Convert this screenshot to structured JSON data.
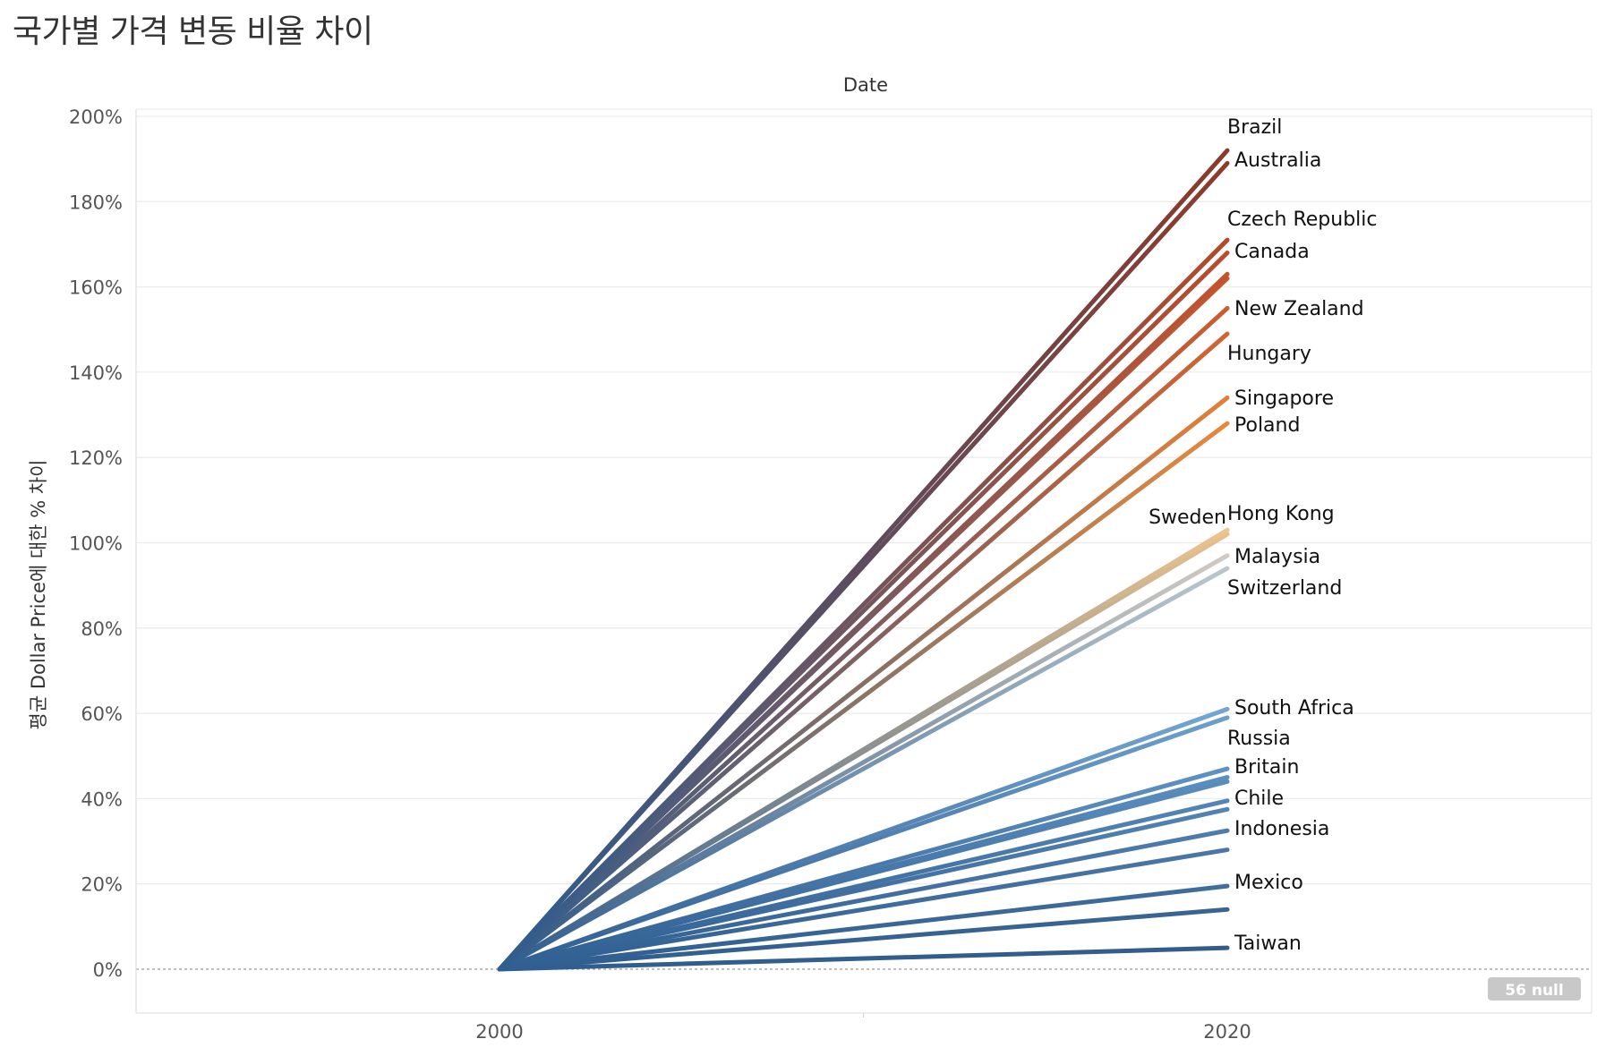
{
  "title": "국가별 가격 변동 비율 차이",
  "chart_data": {
    "type": "line",
    "column_header": "Date",
    "ylabel": "평균 Dollar Price에 대한 % 차이",
    "ylim": [
      -10,
      200
    ],
    "y_ticks": [
      "200%",
      "180%",
      "160%",
      "140%",
      "120%",
      "100%",
      "80%",
      "60%",
      "40%",
      "20%",
      "0%"
    ],
    "y_tick_values": [
      200,
      180,
      160,
      140,
      120,
      100,
      80,
      60,
      40,
      20,
      0
    ],
    "x_ticks": [
      "2000",
      "2020"
    ],
    "null_badge": "56 null",
    "grid": true,
    "series": [
      {
        "name": "Brazil",
        "x": [
          2000,
          2020
        ],
        "y": [
          0,
          192
        ],
        "color": "#8b3a2a"
      },
      {
        "name": "Australia",
        "x": [
          2000,
          2020
        ],
        "y": [
          0,
          189
        ],
        "color": "#8e3b2b"
      },
      {
        "name": "Czech Republic",
        "x": [
          2000,
          2020
        ],
        "y": [
          0,
          171
        ],
        "color": "#b24a2a"
      },
      {
        "name": "Canada",
        "x": [
          2000,
          2020
        ],
        "y": [
          0,
          168
        ],
        "color": "#b84e2c"
      },
      {
        "name": "",
        "x": [
          2000,
          2020
        ],
        "y": [
          0,
          163
        ],
        "color": "#c2532c"
      },
      {
        "name": "",
        "x": [
          2000,
          2020
        ],
        "y": [
          0,
          162
        ],
        "color": "#c5552d"
      },
      {
        "name": "New Zealand",
        "x": [
          2000,
          2020
        ],
        "y": [
          0,
          155
        ],
        "color": "#cc5c2f"
      },
      {
        "name": "Hungary",
        "x": [
          2000,
          2020
        ],
        "y": [
          0,
          149
        ],
        "color": "#d26431"
      },
      {
        "name": "Singapore",
        "x": [
          2000,
          2020
        ],
        "y": [
          0,
          134
        ],
        "color": "#e07f3a"
      },
      {
        "name": "Poland",
        "x": [
          2000,
          2020
        ],
        "y": [
          0,
          128
        ],
        "color": "#e5893d"
      },
      {
        "name": "Sweden",
        "x": [
          2000,
          2020
        ],
        "y": [
          0,
          103
        ],
        "color": "#ecc48e"
      },
      {
        "name": "Hong Kong",
        "x": [
          2000,
          2020
        ],
        "y": [
          0,
          102
        ],
        "color": "#e6c08f"
      },
      {
        "name": "Malaysia",
        "x": [
          2000,
          2020
        ],
        "y": [
          0,
          97
        ],
        "color": "#cfcac2"
      },
      {
        "name": "Switzerland",
        "x": [
          2000,
          2020
        ],
        "y": [
          0,
          94
        ],
        "color": "#b9c6cc"
      },
      {
        "name": "South Africa",
        "x": [
          2000,
          2020
        ],
        "y": [
          0,
          61
        ],
        "color": "#74a6d2"
      },
      {
        "name": "Russia",
        "x": [
          2000,
          2020
        ],
        "y": [
          0,
          59
        ],
        "color": "#6d9fcc"
      },
      {
        "name": "Britain",
        "x": [
          2000,
          2020
        ],
        "y": [
          0,
          47
        ],
        "color": "#5f92c2"
      },
      {
        "name": "",
        "x": [
          2000,
          2020
        ],
        "y": [
          0,
          45
        ],
        "color": "#5b8fc0"
      },
      {
        "name": "",
        "x": [
          2000,
          2020
        ],
        "y": [
          0,
          44
        ],
        "color": "#5a8dbe"
      },
      {
        "name": "Chile",
        "x": [
          2000,
          2020
        ],
        "y": [
          0,
          39.5
        ],
        "color": "#5585b6"
      },
      {
        "name": "",
        "x": [
          2000,
          2020
        ],
        "y": [
          0,
          37.5
        ],
        "color": "#5382b3"
      },
      {
        "name": "Indonesia",
        "x": [
          2000,
          2020
        ],
        "y": [
          0,
          32.5
        ],
        "color": "#4f7cae"
      },
      {
        "name": "",
        "x": [
          2000,
          2020
        ],
        "y": [
          0,
          28
        ],
        "color": "#4a77a8"
      },
      {
        "name": "Mexico",
        "x": [
          2000,
          2020
        ],
        "y": [
          0,
          19.5
        ],
        "color": "#416d9d"
      },
      {
        "name": "",
        "x": [
          2000,
          2020
        ],
        "y": [
          0,
          14
        ],
        "color": "#3a6593"
      },
      {
        "name": "Taiwan",
        "x": [
          2000,
          2020
        ],
        "y": [
          0,
          5
        ],
        "color": "#325d8b"
      }
    ]
  }
}
